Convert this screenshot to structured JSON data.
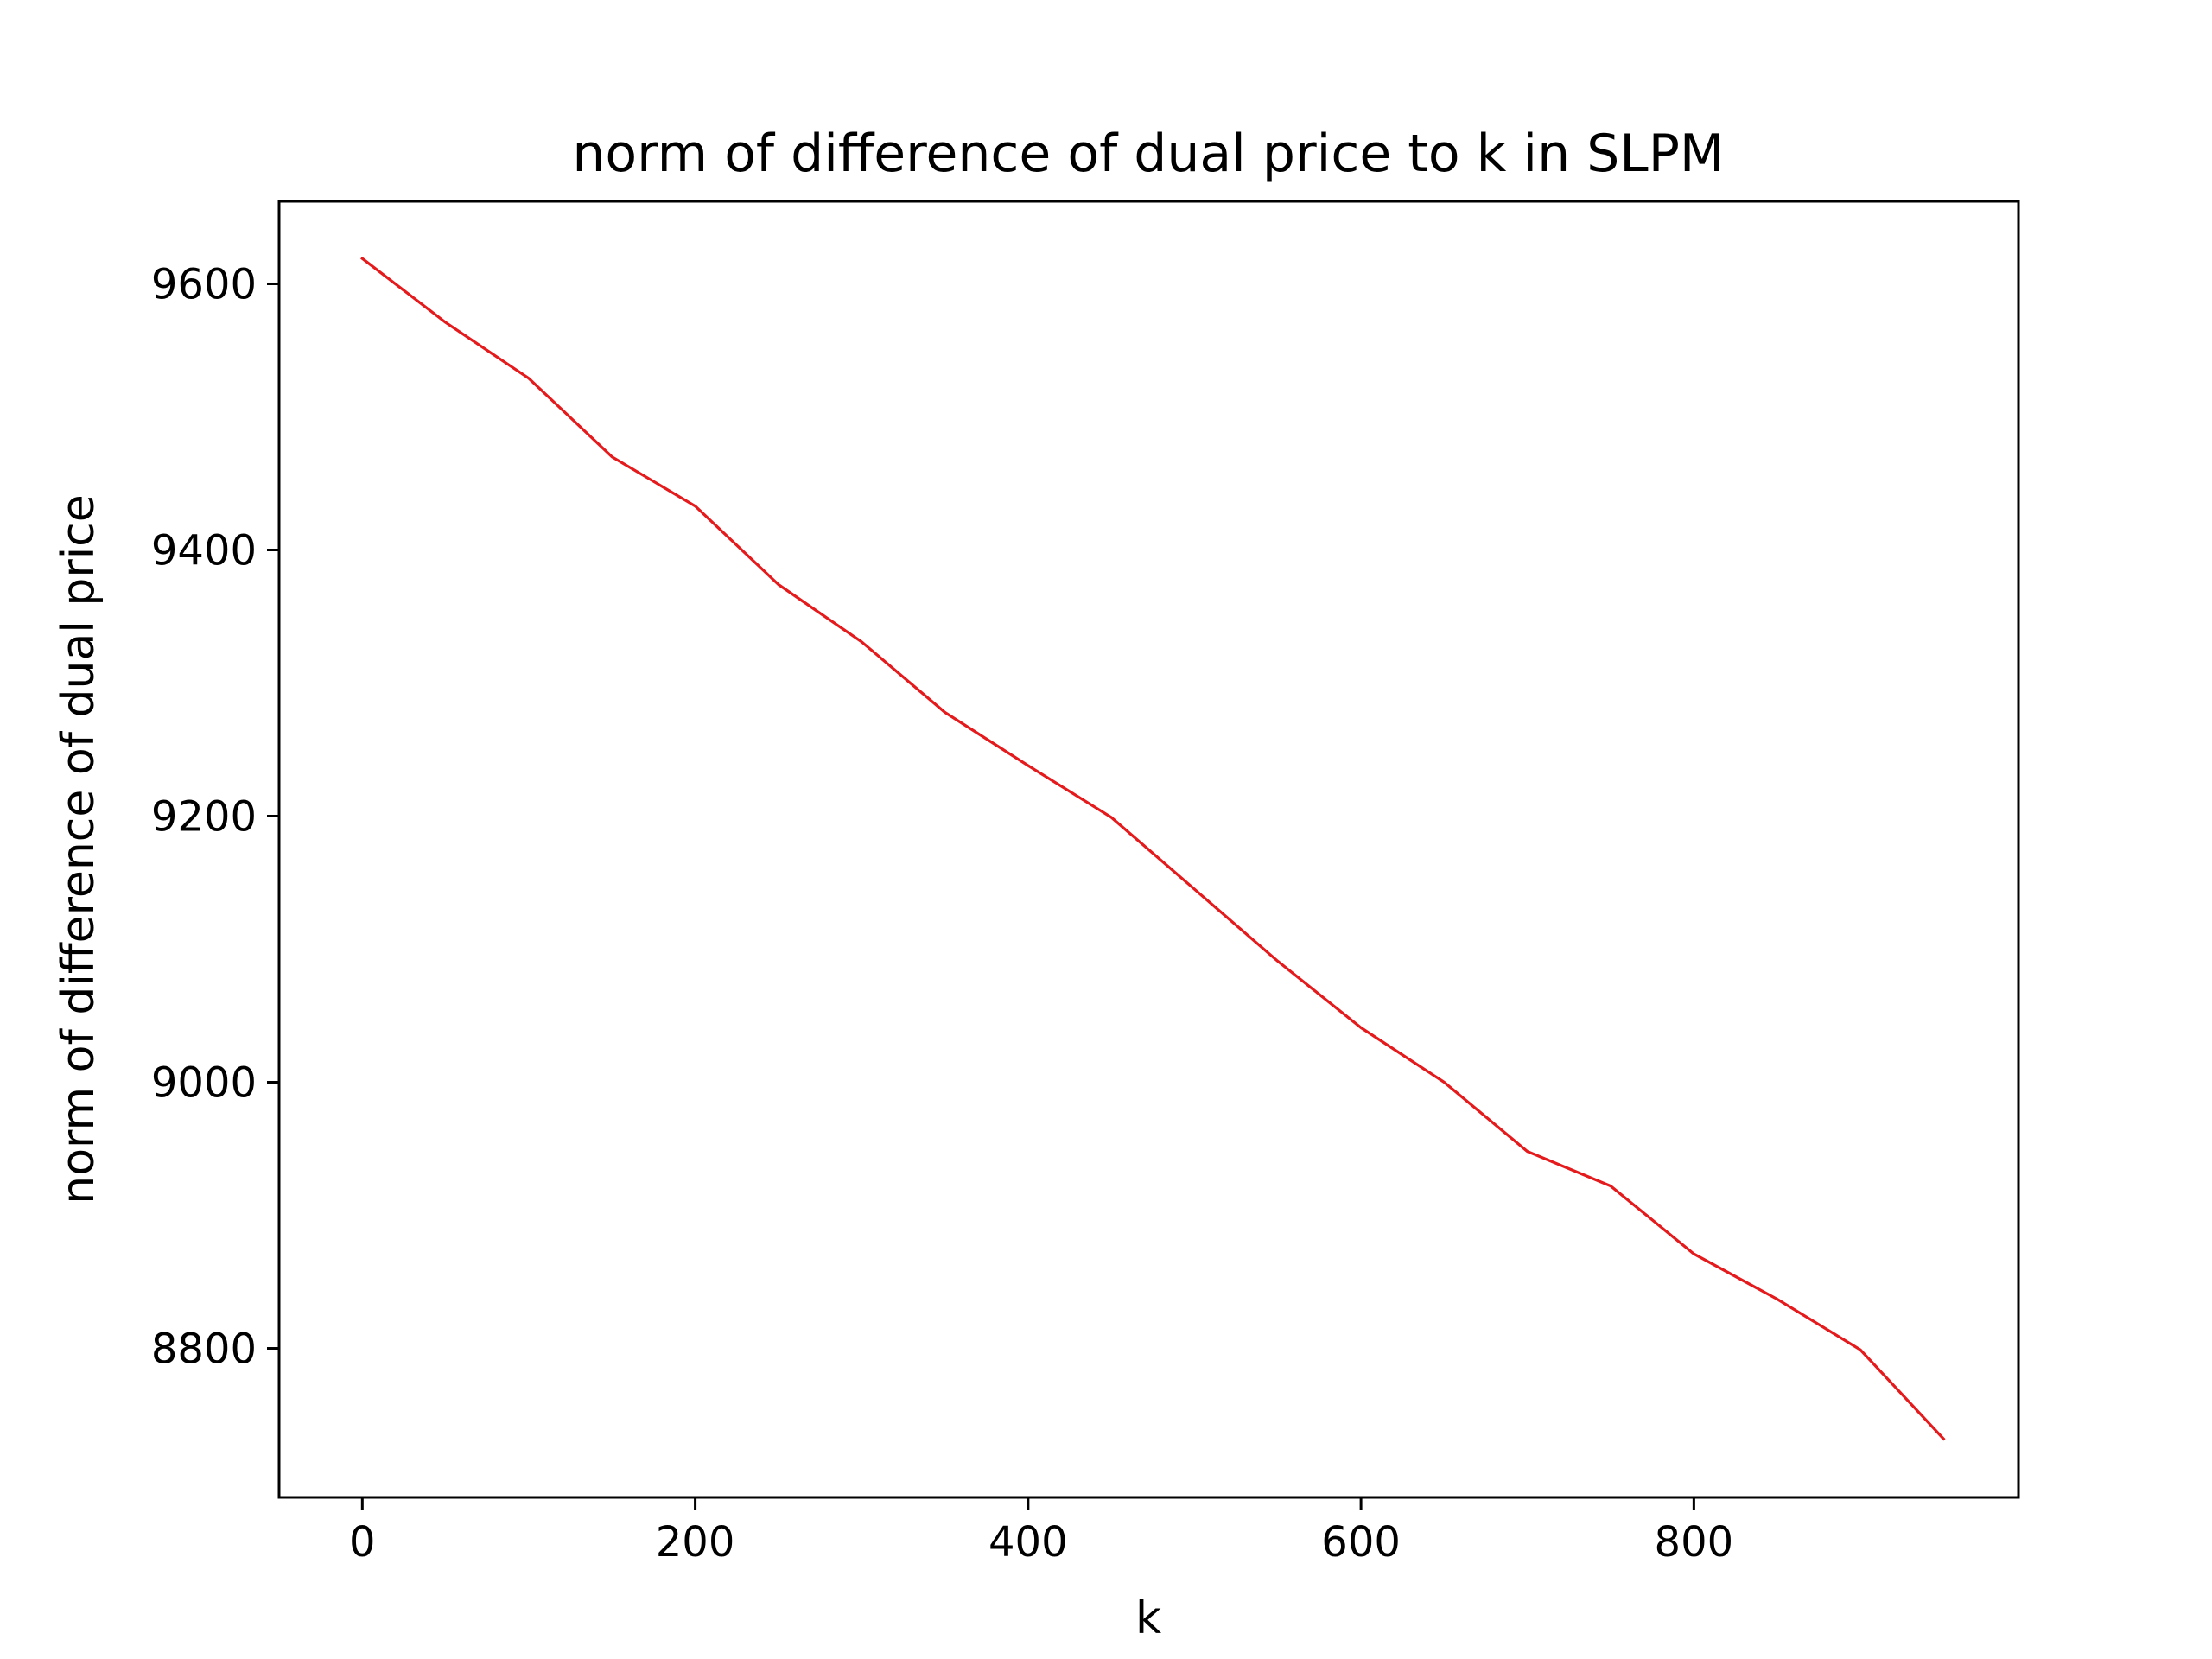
{
  "chart_data": {
    "type": "line",
    "title": "norm of difference of dual price to k in SLPM",
    "xlabel": "k",
    "ylabel": "norm of difference of dual price",
    "xlim": [
      -50,
      995
    ],
    "ylim": [
      8688,
      9662
    ],
    "xticks": [
      0,
      200,
      400,
      600,
      800
    ],
    "xtick_labels": [
      "0",
      "200",
      "400",
      "600",
      "800"
    ],
    "yticks": [
      8800,
      9000,
      9200,
      9400,
      9600
    ],
    "ytick_labels": [
      "8800",
      "9000",
      "9200",
      "9400",
      "9600"
    ],
    "grid": false,
    "colors": {
      "line": "#e41a1c"
    },
    "series": [
      {
        "x": [
          0,
          50,
          100,
          150,
          200,
          250,
          300,
          350,
          400,
          450,
          500,
          550,
          600,
          650,
          700,
          750,
          800,
          850,
          900,
          950
        ],
        "y": [
          9619,
          9571,
          9529,
          9470,
          9433,
          9374,
          9331,
          9278,
          9238,
          9199,
          9145,
          9091,
          9041,
          9000,
          8948,
          8922,
          8871,
          8837,
          8799,
          8732
        ]
      }
    ]
  }
}
